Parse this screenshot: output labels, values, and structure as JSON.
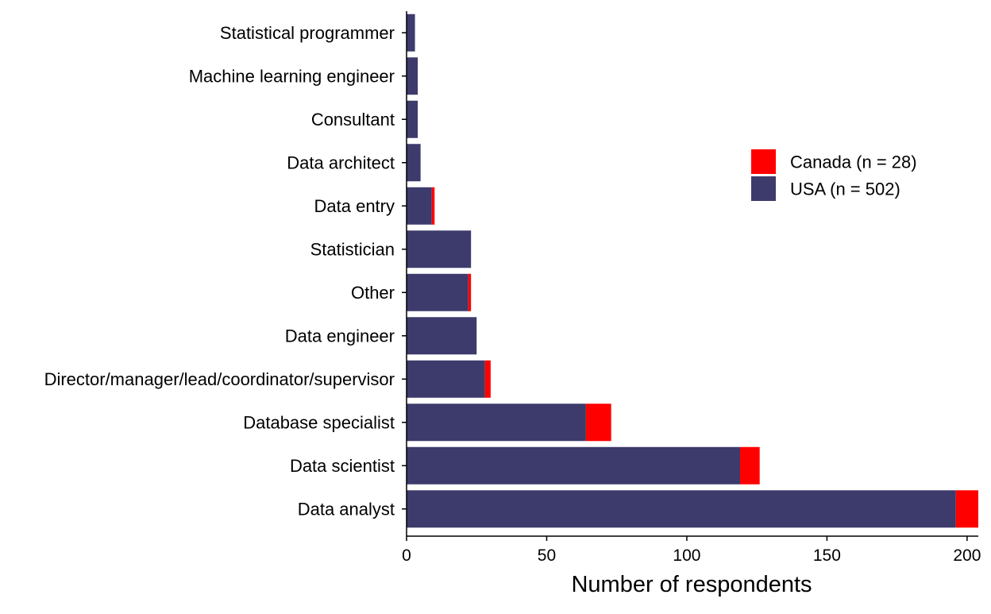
{
  "chart_data": {
    "type": "bar",
    "orientation": "horizontal",
    "stacked": true,
    "categories": [
      "Data analyst",
      "Data scientist",
      "Database specialist",
      "Director/manager/lead/coordinator/supervisor",
      "Data engineer",
      "Other",
      "Statistician",
      "Data entry",
      "Data architect",
      "Consultant",
      "Machine learning engineer",
      "Statistical programmer"
    ],
    "series": [
      {
        "name": "USA (n = 502)",
        "color": "#3d3b6b",
        "values": [
          196,
          119,
          64,
          28,
          25,
          22,
          23,
          9,
          5,
          4,
          4,
          3
        ]
      },
      {
        "name": "Canada (n = 28)",
        "color": "#ff0000",
        "values": [
          8,
          7,
          9,
          2,
          0,
          1,
          0,
          1,
          0,
          0,
          0,
          0
        ]
      }
    ],
    "legend_order": [
      "Canada (n = 28)",
      "USA (n = 502)"
    ],
    "xlabel": "Number of respondents",
    "ylabel": "",
    "xlim": [
      0,
      204
    ],
    "xticks": [
      0,
      50,
      100,
      150,
      200
    ],
    "grid": false,
    "legend_position": "right-center"
  }
}
